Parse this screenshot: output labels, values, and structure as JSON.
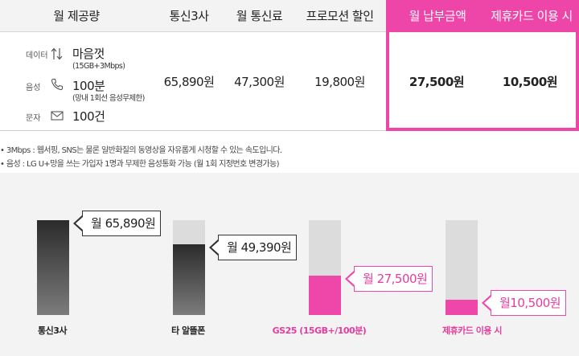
{
  "table": {
    "headers": {
      "offer": "월 제공량",
      "carrier": "통신3사",
      "fee": "월 통신료",
      "promo": "프로모션 할인",
      "pay": "월 납부금액",
      "card": "제휴카드 이용 시"
    },
    "specs": {
      "data": {
        "label": "데이터",
        "icon": "up-down-arrows-icon",
        "value": "마음껏",
        "note": "(15GB+3Mbps)"
      },
      "voice": {
        "label": "음성",
        "icon": "phone-icon",
        "value": "100분",
        "note": "(망내 1회선 음성무제한)"
      },
      "sms": {
        "label": "문자",
        "icon": "envelope-icon",
        "value": "100건"
      }
    },
    "values": {
      "carrier": "65,890원",
      "fee": "47,300원",
      "promo": "19,800원",
      "pay": "27,500원",
      "card": "10,500원"
    }
  },
  "notes": [
    "• 3Mbps : 웹서핑, SNS는 물론 일반화질의 동영상을 자유롭게 시청할 수 있는 속도입니다.",
    "• 음성 : LG U+망을 쓰는 가입자 1명과 무제한 음성통화 가능 (월 1회 지정번호 변경가능)"
  ],
  "colors": {
    "accent": "#ef46a9",
    "header_bg": "#f3f3f3",
    "chart_bg": "#f3f3f3",
    "bar_track": "#dcdcdc"
  },
  "chart_data": {
    "type": "bar",
    "categories": [
      "통신3사",
      "타 알뜰폰",
      "GS25 (15GB+/100분)",
      "제휴카드 이용 시"
    ],
    "values": [
      65890,
      49390,
      27500,
      10500
    ],
    "data_labels": [
      "월 65,890원",
      "월 49,390원",
      "월 27,500원",
      "월10,500원"
    ],
    "highlight": [
      false,
      false,
      true,
      true
    ],
    "ylim": [
      0,
      65890
    ],
    "grid": false,
    "title": "",
    "xlabel": "",
    "ylabel": ""
  }
}
